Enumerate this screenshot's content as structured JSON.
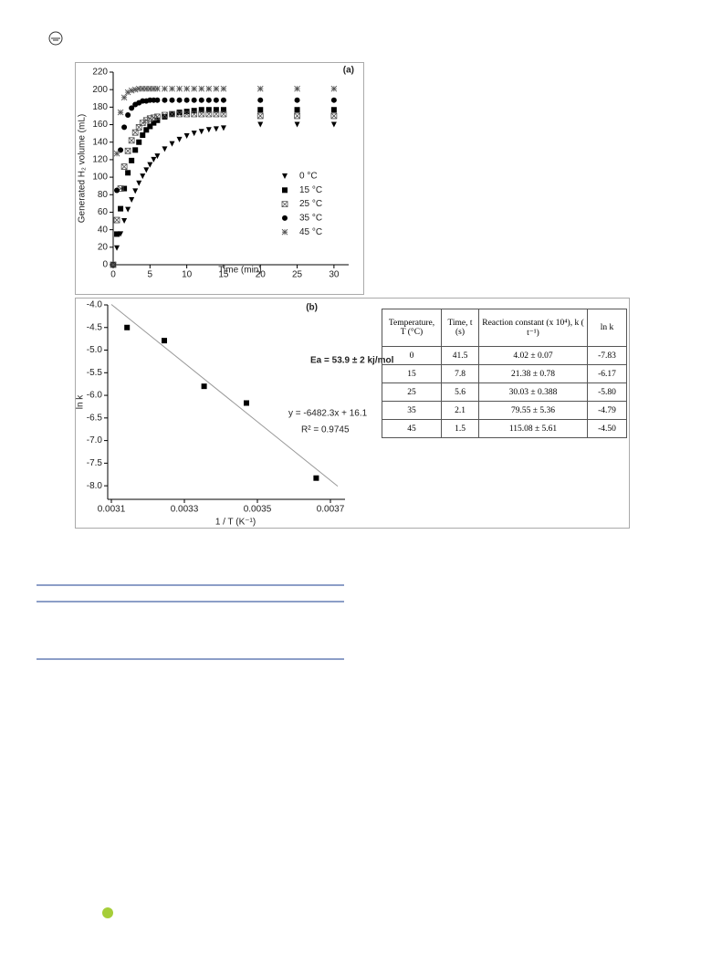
{
  "chart_data": [
    {
      "type": "scatter",
      "label": "(a)",
      "x_label": "Time (min)",
      "y_label": "Generated H₂ volume (mL)",
      "x": [
        0,
        0.5,
        1,
        1.5,
        2,
        2.5,
        3,
        3.5,
        4,
        4.5,
        5,
        5.5,
        6,
        7,
        8,
        9,
        10,
        11,
        12,
        13,
        14,
        15,
        20,
        25,
        30
      ],
      "series": [
        {
          "name": "0 °C",
          "color": "#000000",
          "marker": "triangle-down",
          "values": [
            0,
            19,
            35,
            50,
            63,
            74,
            84,
            93,
            101,
            108,
            114,
            120,
            124,
            132,
            138,
            143,
            147,
            150,
            152,
            154,
            155,
            156,
            160,
            160,
            160
          ]
        },
        {
          "name": "15 °C",
          "color": "#000000",
          "marker": "square",
          "values": [
            0,
            35,
            64,
            87,
            105,
            119,
            131,
            140,
            148,
            154,
            158,
            162,
            165,
            169,
            172,
            174,
            175,
            176,
            177,
            177,
            177,
            177,
            177,
            177,
            177
          ]
        },
        {
          "name": "25 °C",
          "color": "#555555",
          "marker": "square-open",
          "values": [
            0,
            51,
            87,
            112,
            130,
            142,
            151,
            157,
            162,
            165,
            167,
            168,
            169,
            171,
            172,
            172,
            172,
            172,
            172,
            172,
            172,
            172,
            170,
            170,
            170
          ]
        },
        {
          "name": "35 °C",
          "color": "#000000",
          "marker": "circle",
          "values": [
            0,
            85,
            131,
            157,
            171,
            179,
            183,
            185,
            187,
            187,
            188,
            188,
            188,
            188,
            188,
            188,
            188,
            188,
            188,
            188,
            188,
            188,
            188,
            188,
            188
          ]
        },
        {
          "name": "45 °C",
          "color": "#555555",
          "marker": "asterisk",
          "values": [
            0,
            127,
            174,
            191,
            197,
            199,
            200,
            201,
            201,
            201,
            201,
            201,
            201,
            201,
            201,
            201,
            201,
            201,
            201,
            201,
            201,
            201,
            201,
            201,
            201
          ]
        }
      ],
      "xlim": [
        0,
        32
      ],
      "xticks": [
        0,
        5,
        10,
        15,
        20,
        25,
        30
      ],
      "ylim": [
        0,
        220
      ],
      "yticks": [
        0,
        20,
        40,
        60,
        80,
        100,
        120,
        140,
        160,
        180,
        200,
        220
      ],
      "legend": "lower-right"
    },
    {
      "type": "scatter",
      "label": "(b)",
      "x_label": "1 / T (K⁻¹)",
      "y_label": "ln k",
      "annotations": [
        "Ea = 53.9 ± 2 kj/mol",
        "y = -6482.3x + 16.1",
        "R² = 0.9745"
      ],
      "series": [
        {
          "color": "#000000",
          "marker": "square",
          "x": [
            0.003143,
            0.003245,
            0.003354,
            0.00347,
            0.003661
          ],
          "values": [
            -4.5,
            -4.79,
            -5.8,
            -6.17,
            -7.83
          ]
        },
        {
          "color": "#999999",
          "marker": "line",
          "x": [
            0.0031,
            0.00372
          ],
          "values": [
            -3.99,
            -8.01
          ]
        }
      ],
      "xlim": [
        0.00309,
        0.00374
      ],
      "xticks": [
        0.0031,
        0.0033,
        0.0035,
        0.0037
      ],
      "ylim": [
        -8.3,
        -4.0
      ],
      "yticks": [
        {
          "value": -4,
          "label": "-4.0"
        },
        -4.5,
        {
          "value": -5,
          "label": "-5.0"
        },
        -5.5,
        {
          "value": -6,
          "label": "-6.0"
        },
        -6.5,
        {
          "value": -7,
          "label": "-7.0"
        },
        -7.5,
        {
          "value": -8,
          "label": "-8.0"
        }
      ]
    }
  ],
  "table": {
    "header": [
      "Temperature, T (°C)",
      "Time, t (s)",
      "Reaction constant (x 10⁴), k ( t⁻¹)",
      "ln k"
    ],
    "rows": [
      [
        "0",
        "41.5",
        "4.02 ± 0.07",
        "-7.83"
      ],
      [
        "15",
        "7.8",
        "21.38 ± 0.78",
        "-6.17"
      ],
      [
        "25",
        "5.6",
        "30.03 ± 0.388",
        "-5.80"
      ],
      [
        "35",
        "2.1",
        "79.55 ± 5.36",
        "-4.79"
      ],
      [
        "45",
        "1.5",
        "115.08 ± 5.61",
        "-4.50"
      ]
    ]
  }
}
